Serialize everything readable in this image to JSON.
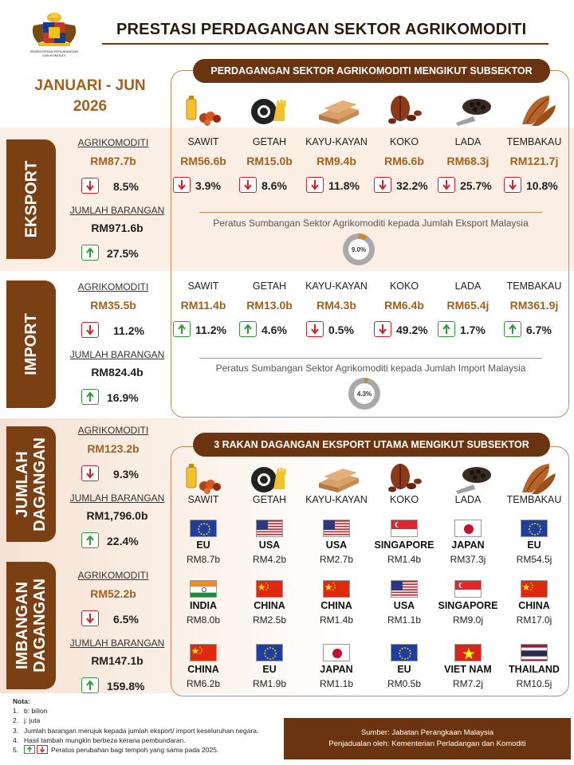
{
  "header": {
    "title": "PRESTASI PERDAGANGAN SEKTOR AGRIKOMODITI",
    "logo_caption": "KEMENTERIAN PERLADANGAN DAN KOMODITI"
  },
  "period": {
    "line1": "JANUARI - JUN",
    "line2": "2026"
  },
  "subsector_banner": "PERDAGANGAN SEKTOR AGRIKOMODITI MENGIKUT SUBSEKTOR",
  "partners_banner": "3 RAKAN DAGANGAN EKSPORT UTAMA MENGIKUT SUBSEKTOR",
  "colors": {
    "brown": "#6b3410",
    "gold": "#a0611d",
    "down": "#d0202a",
    "up": "#2e9a3a",
    "band": "#fbeee4"
  },
  "icons": [
    "palm-oil-icon",
    "rubber-icon",
    "timber-icon",
    "cocoa-icon",
    "pepper-icon",
    "tobacco-icon"
  ],
  "eksport": {
    "label": "EKSPORT",
    "agri_label": "AGRIKOMODITI",
    "agri_value": "RM87.7b",
    "agri_change": "8.5%",
    "agri_dir": "down",
    "total_label": "JUMLAH BARANGAN",
    "total_value": "RM971.6b",
    "total_change": "27.5%",
    "total_dir": "up",
    "subsectors": [
      {
        "name": "SAWIT",
        "value": "RM56.6b",
        "change": "3.9%",
        "dir": "down"
      },
      {
        "name": "GETAH",
        "value": "RM15.0b",
        "change": "8.6%",
        "dir": "down"
      },
      {
        "name": "KAYU-KAYAN",
        "value": "RM9.4b",
        "change": "11.8%",
        "dir": "down"
      },
      {
        "name": "KOKO",
        "value": "RM6.6b",
        "change": "32.2%",
        "dir": "down"
      },
      {
        "name": "LADA",
        "value": "RM68.3j",
        "change": "25.7%",
        "dir": "down"
      },
      {
        "name": "TEMBAKAU",
        "value": "RM121.7j",
        "change": "10.8%",
        "dir": "down"
      }
    ],
    "share_caption": "Peratus Sumbangan Sektor Agrikomoditi kepada Jumlah Eksport Malaysia",
    "share_value": "9.0%",
    "share_fraction": 0.09
  },
  "import": {
    "label": "IMPORT",
    "agri_label": "AGRIKOMODITI",
    "agri_value": "RM35.5b",
    "agri_change": "11.2%",
    "agri_dir": "down",
    "total_label": "JUMLAH BARANGAN",
    "total_value": "RM824.4b",
    "total_change": "16.9%",
    "total_dir": "up",
    "subsectors": [
      {
        "name": "SAWIT",
        "value": "RM11.4b",
        "change": "11.2%",
        "dir": "up"
      },
      {
        "name": "GETAH",
        "value": "RM13.0b",
        "change": "4.6%",
        "dir": "up"
      },
      {
        "name": "KAYU-KAYAN",
        "value": "RM4.3b",
        "change": "0.5%",
        "dir": "down"
      },
      {
        "name": "KOKO",
        "value": "RM6.4b",
        "change": "49.2%",
        "dir": "down"
      },
      {
        "name": "LADA",
        "value": "RM65.4j",
        "change": "1.7%",
        "dir": "up"
      },
      {
        "name": "TEMBAKAU",
        "value": "RM361.9j",
        "change": "6.7%",
        "dir": "up"
      }
    ],
    "share_caption": "Peratus Sumbangan Sektor Agrikomoditi kepada Jumlah Import Malaysia",
    "share_value": "4.3%",
    "share_fraction": 0.043
  },
  "jumlah": {
    "label_line1": "JUMLAH",
    "label_line2": "DAGANGAN",
    "agri_label": "AGRIKOMODITI",
    "agri_value": "RM123.2b",
    "agri_change": "9.3%",
    "agri_dir": "down",
    "total_label": "JUMLAH BARANGAN",
    "total_value": "RM1,796.0b",
    "total_change": "22.4%",
    "total_dir": "up"
  },
  "imbangan": {
    "label_line1": "IMBANGAN",
    "label_line2": "DAGANGAN",
    "agri_label": "AGRIKOMODITI",
    "agri_value": "RM52.2b",
    "agri_change": "6.5%",
    "agri_dir": "down",
    "total_label": "JUMLAH BARANGAN",
    "total_value": "RM147.1b",
    "total_change": "159.8%",
    "total_dir": "up"
  },
  "partners": {
    "subsectors": [
      "SAWIT",
      "GETAH",
      "KAYU-KAYAN",
      "KOKO",
      "LADA",
      "TEMBAKAU"
    ],
    "rows": [
      [
        {
          "country": "EU",
          "value": "RM8.7b",
          "flag": "eu"
        },
        {
          "country": "USA",
          "value": "RM4.2b",
          "flag": "usa"
        },
        {
          "country": "USA",
          "value": "RM2.7b",
          "flag": "usa"
        },
        {
          "country": "SINGAPORE",
          "value": "RM1.4b",
          "flag": "singapore"
        },
        {
          "country": "JAPAN",
          "value": "RM37.3j",
          "flag": "japan"
        },
        {
          "country": "EU",
          "value": "RM54.5j",
          "flag": "eu"
        }
      ],
      [
        {
          "country": "INDIA",
          "value": "RM8.0b",
          "flag": "india"
        },
        {
          "country": "CHINA",
          "value": "RM2.5b",
          "flag": "china"
        },
        {
          "country": "CHINA",
          "value": "RM1.4b",
          "flag": "china"
        },
        {
          "country": "USA",
          "value": "RM1.1b",
          "flag": "usa"
        },
        {
          "country": "SINGAPORE",
          "value": "RM9.0j",
          "flag": "singapore"
        },
        {
          "country": "CHINA",
          "value": "RM17.0j",
          "flag": "china"
        }
      ],
      [
        {
          "country": "CHINA",
          "value": "RM6.2b",
          "flag": "china"
        },
        {
          "country": "EU",
          "value": "RM1.9b",
          "flag": "eu"
        },
        {
          "country": "JAPAN",
          "value": "RM1.1b",
          "flag": "japan"
        },
        {
          "country": "EU",
          "value": "RM0.5b",
          "flag": "eu"
        },
        {
          "country": "VIET NAM",
          "value": "RM7.2j",
          "flag": "vietnam"
        },
        {
          "country": "THAILAND",
          "value": "RM10.5j",
          "flag": "thailand"
        }
      ]
    ]
  },
  "notes": {
    "title": "Nota:",
    "items": [
      "b: bilion",
      "j: juta",
      "Jumlah barangan merujuk kepada jumlah eksport/ import keseluruhan negara.",
      "Hasil tambah mungkin berbeza kerana pembundaran.",
      "Peratus perubahan bagi tempoh yang sama pada 2025."
    ],
    "numbers": [
      "1.",
      "2.",
      "3.",
      "4.",
      "5."
    ]
  },
  "footer": {
    "source": "Sumber: Jabatan Perangkaan Malaysia",
    "compiled": "Penjadualan oleh: Kementerian Perladangan dan Komoditi"
  }
}
